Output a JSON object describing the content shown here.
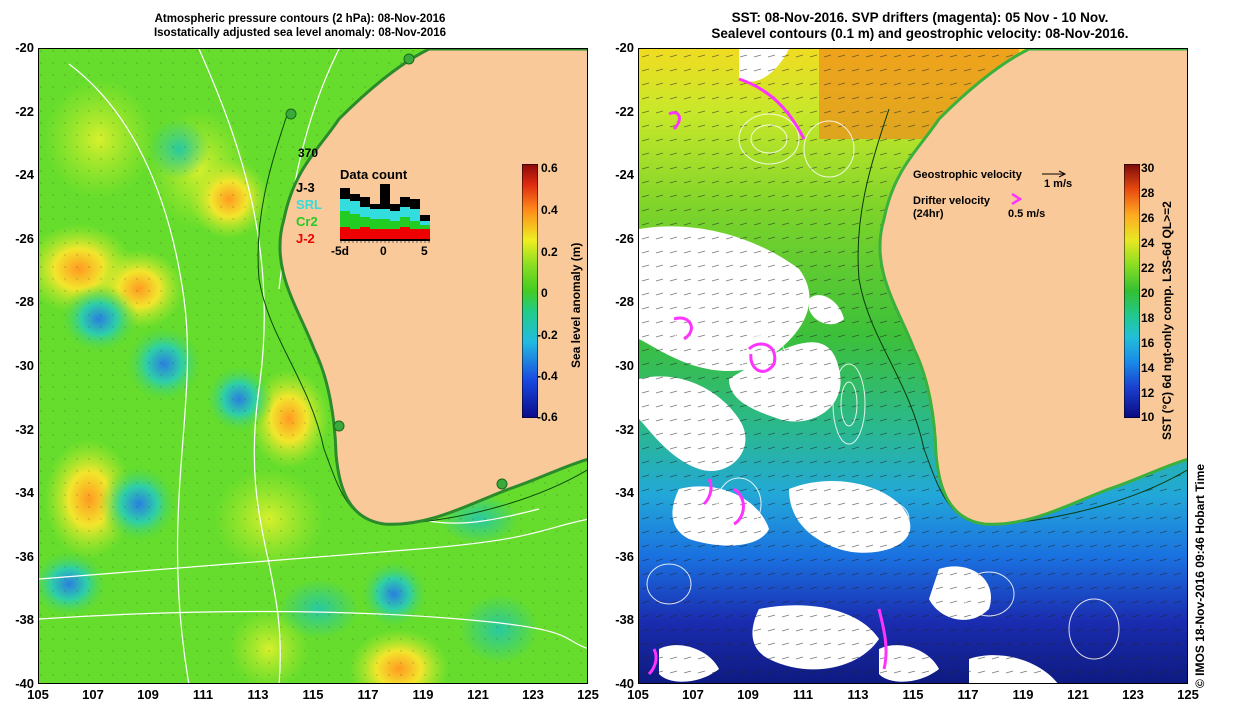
{
  "left_panel": {
    "title_line1": "Atmospheric pressure contours (2 hPa): 08-Nov-2016",
    "title_line2": "Isostatically adjusted sea level anomaly: 08-Nov-2016",
    "colorbar": {
      "label": "Sea level anomaly (m)",
      "ticks": [
        "0.6",
        "0.4",
        "0.2",
        "0",
        "-0.2",
        "-0.4",
        "-0.6"
      ]
    },
    "data_count": {
      "title": "Data count",
      "max_label": "370",
      "satellites": [
        {
          "name": "J-3",
          "color": "#000000"
        },
        {
          "name": "SRL",
          "color": "#33dddd"
        },
        {
          "name": "Cr2",
          "color": "#22cc22"
        },
        {
          "name": "J-2",
          "color": "#ee0000"
        }
      ],
      "x_labels": [
        "-5d",
        "0",
        "5"
      ]
    }
  },
  "right_panel": {
    "title_line1": "SST: 08-Nov-2016. SVP drifters (magenta): 05 Nov - 10 Nov.",
    "title_line2": "Sealevel contours (0.1 m) and geostrophic velocity: 08-Nov-2016.",
    "legend": {
      "geostrophic_label": "Geostrophic velocity",
      "geostrophic_scale": "1 m/s",
      "drifter_label": "Drifter velocity",
      "drifter_sub": "(24hr)",
      "drifter_scale": "0.5 m/s",
      "drifter_color": "#ff33ff"
    },
    "colorbar": {
      "label": "SST (°C) 6d ngt-only comp. L3S-6d QL>=2",
      "ticks": [
        "30",
        "28",
        "26",
        "24",
        "22",
        "20",
        "18",
        "16",
        "14",
        "12",
        "10"
      ]
    }
  },
  "axes": {
    "y_labels": [
      "-20",
      "-22",
      "-24",
      "-26",
      "-28",
      "-30",
      "-32",
      "-34",
      "-36",
      "-38",
      "-40"
    ],
    "x_labels": [
      "105",
      "107",
      "109",
      "111",
      "113",
      "115",
      "117",
      "119",
      "121",
      "123",
      "125"
    ]
  },
  "credit": "©  IMOS 18-Nov-2016 09:46 Hobart Time",
  "colors": {
    "land": "#f9c99a",
    "ocean_green": "#5fdc2a",
    "cold_blue": "#1a2cb0"
  }
}
